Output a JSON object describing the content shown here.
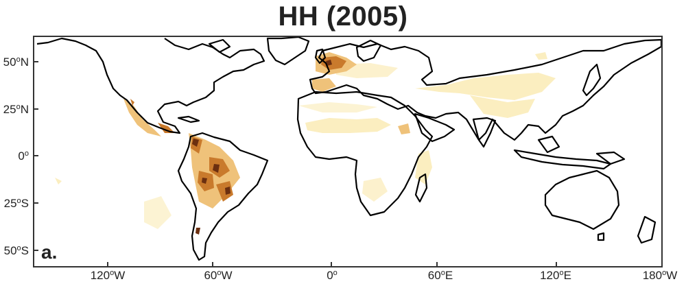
{
  "title": "HH (2005)",
  "panel_label": "a.",
  "axes": {
    "y_ticks": [
      {
        "deg": "50",
        "hemi": "N"
      },
      {
        "deg": "25",
        "hemi": "N"
      },
      {
        "deg": "0",
        "hemi": ""
      },
      {
        "deg": "25",
        "hemi": "S"
      },
      {
        "deg": "50",
        "hemi": "S"
      }
    ],
    "x_ticks": [
      {
        "deg": "120",
        "hemi": "W"
      },
      {
        "deg": "60",
        "hemi": "W"
      },
      {
        "deg": "0",
        "hemi": ""
      },
      {
        "deg": "60",
        "hemi": "E"
      },
      {
        "deg": "120",
        "hemi": "E"
      },
      {
        "deg": "180",
        "hemi": "W"
      }
    ]
  },
  "colors": {
    "coast": "#000000",
    "low": "#fbeec0",
    "mid": "#efc27a",
    "high": "#c97a2c",
    "max": "#6b2f10"
  }
}
